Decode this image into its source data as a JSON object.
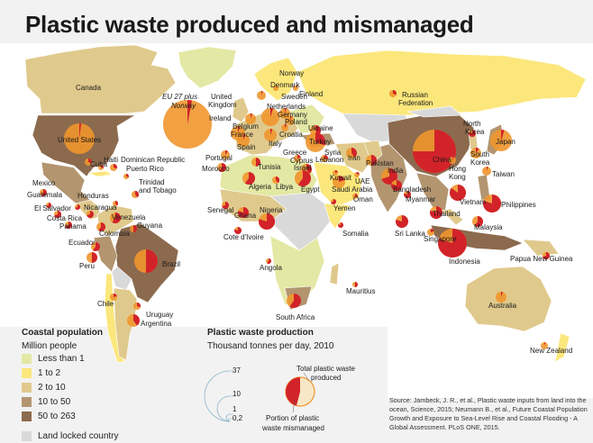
{
  "title": "Plastic waste produced and mismanaged",
  "colors": {
    "background": "#f2f2f2",
    "ocean": "#ffffff",
    "less_than_1": "#e3e8a4",
    "1_to_2": "#fbe77c",
    "2_to_10": "#e0c98c",
    "10_to_50": "#b39570",
    "50_to_263": "#8c6a4e",
    "land_locked": "#d9d9d9",
    "total": "#f0962e",
    "mismanaged": "#d2232a"
  },
  "legend_coastal": {
    "title": "Coastal population",
    "subtitle": "Million people",
    "items": [
      {
        "label": "Less than 1",
        "color": "#e3e8a4"
      },
      {
        "label": "1 to 2",
        "color": "#fbe77c"
      },
      {
        "label": "2 to 10",
        "color": "#e0c98c"
      },
      {
        "label": "10 to 50",
        "color": "#b39570"
      },
      {
        "label": "50 to 263",
        "color": "#8c6a4e"
      }
    ],
    "land_locked": {
      "label": "Land locked country",
      "color": "#d9d9d9"
    }
  },
  "legend_plastic": {
    "title": "Plastic waste production",
    "subtitle": "Thousand tonnes per day, 2010",
    "scale_values": [
      "37",
      "10",
      "1",
      "0,2"
    ],
    "total_label_1": "Total plastic waste",
    "total_label_2": "produced",
    "portion_label_1": "Portion of plastic",
    "portion_label_2": "waste mismanaged"
  },
  "source": "Source: Jambeck, J. R., et al., Plastic waste inputs from land into the ocean, Science, 2015; Neumann B., et al., Future Coastal Population Growth and Exposure to Sea-Level Rise and Coastal Flooding - A Global Assessment. PLoS ONE, 2015.",
  "countries": [
    {
      "name": "Canada"
    },
    {
      "name": "United States"
    },
    {
      "name": "Mexico"
    },
    {
      "name": "Guatemala"
    },
    {
      "name": "El Salvador"
    },
    {
      "name": "Costa Rica"
    },
    {
      "name": "Panama"
    },
    {
      "name": "Honduras"
    },
    {
      "name": "Nicaragua"
    },
    {
      "name": "Cuba"
    },
    {
      "name": "Haiti"
    },
    {
      "name": "Dominican Republic"
    },
    {
      "name": "Puerto Rico"
    },
    {
      "name": "Trinidad"
    },
    {
      "name": "and Tobago"
    },
    {
      "name": "Venezuela"
    },
    {
      "name": "Colombia"
    },
    {
      "name": "Guyana"
    },
    {
      "name": "Ecuador"
    },
    {
      "name": "Peru"
    },
    {
      "name": "Brazil"
    },
    {
      "name": "Chile"
    },
    {
      "name": "Uruguay"
    },
    {
      "name": "Argentina"
    },
    {
      "name": "EU 27 plus"
    },
    {
      "name": "Norway"
    },
    {
      "name": "United"
    },
    {
      "name": "Kingdom"
    },
    {
      "name": "Ireland"
    },
    {
      "name": "Belgium"
    },
    {
      "name": "France"
    },
    {
      "name": "Portugal"
    },
    {
      "name": "Spain"
    },
    {
      "name": "Italy"
    },
    {
      "name": "Denmark"
    },
    {
      "name": "Sweden"
    },
    {
      "name": "Finland"
    },
    {
      "name": "Netherlands"
    },
    {
      "name": "Germany"
    },
    {
      "name": "Poland"
    },
    {
      "name": "Croatia"
    },
    {
      "name": "Ukraine"
    },
    {
      "name": "Greece"
    },
    {
      "name": "Turkey"
    },
    {
      "name": "Cyprus"
    },
    {
      "name": "Syria"
    },
    {
      "name": "Lebanon"
    },
    {
      "name": "Israel"
    },
    {
      "name": "Morocco"
    },
    {
      "name": "Tunisia"
    },
    {
      "name": "Algeria"
    },
    {
      "name": "Libya"
    },
    {
      "name": "Egypt"
    },
    {
      "name": "Senegal"
    },
    {
      "name": "Ghana"
    },
    {
      "name": "Cote d'Ivoire"
    },
    {
      "name": "Nigeria"
    },
    {
      "name": "Angola"
    },
    {
      "name": "South Africa"
    },
    {
      "name": "Somalia"
    },
    {
      "name": "Mauritius"
    },
    {
      "name": "Russian"
    },
    {
      "name": "Federation"
    },
    {
      "name": "Iran"
    },
    {
      "name": "Kuwait"
    },
    {
      "name": "UAE"
    },
    {
      "name": "Saudi Arabia"
    },
    {
      "name": "Oman"
    },
    {
      "name": "Yemen"
    },
    {
      "name": "Pakistan"
    },
    {
      "name": "India"
    },
    {
      "name": "Bangladesh"
    },
    {
      "name": "Myanmar"
    },
    {
      "name": "Sri Lanka"
    },
    {
      "name": "Thailand"
    },
    {
      "name": "Vietnam"
    },
    {
      "name": "Malaysia"
    },
    {
      "name": "Singapore"
    },
    {
      "name": "Indonesia"
    },
    {
      "name": "Philippines"
    },
    {
      "name": "China"
    },
    {
      "name": "North"
    },
    {
      "name": "Korea"
    },
    {
      "name": "South"
    },
    {
      "name": "Korea"
    },
    {
      "name": "Japan"
    },
    {
      "name": "Taiwan"
    },
    {
      "name": "Hong"
    },
    {
      "name": "Kong"
    },
    {
      "name": "Papua New Guinea"
    },
    {
      "name": "Australia"
    },
    {
      "name": "New Zealand"
    }
  ]
}
